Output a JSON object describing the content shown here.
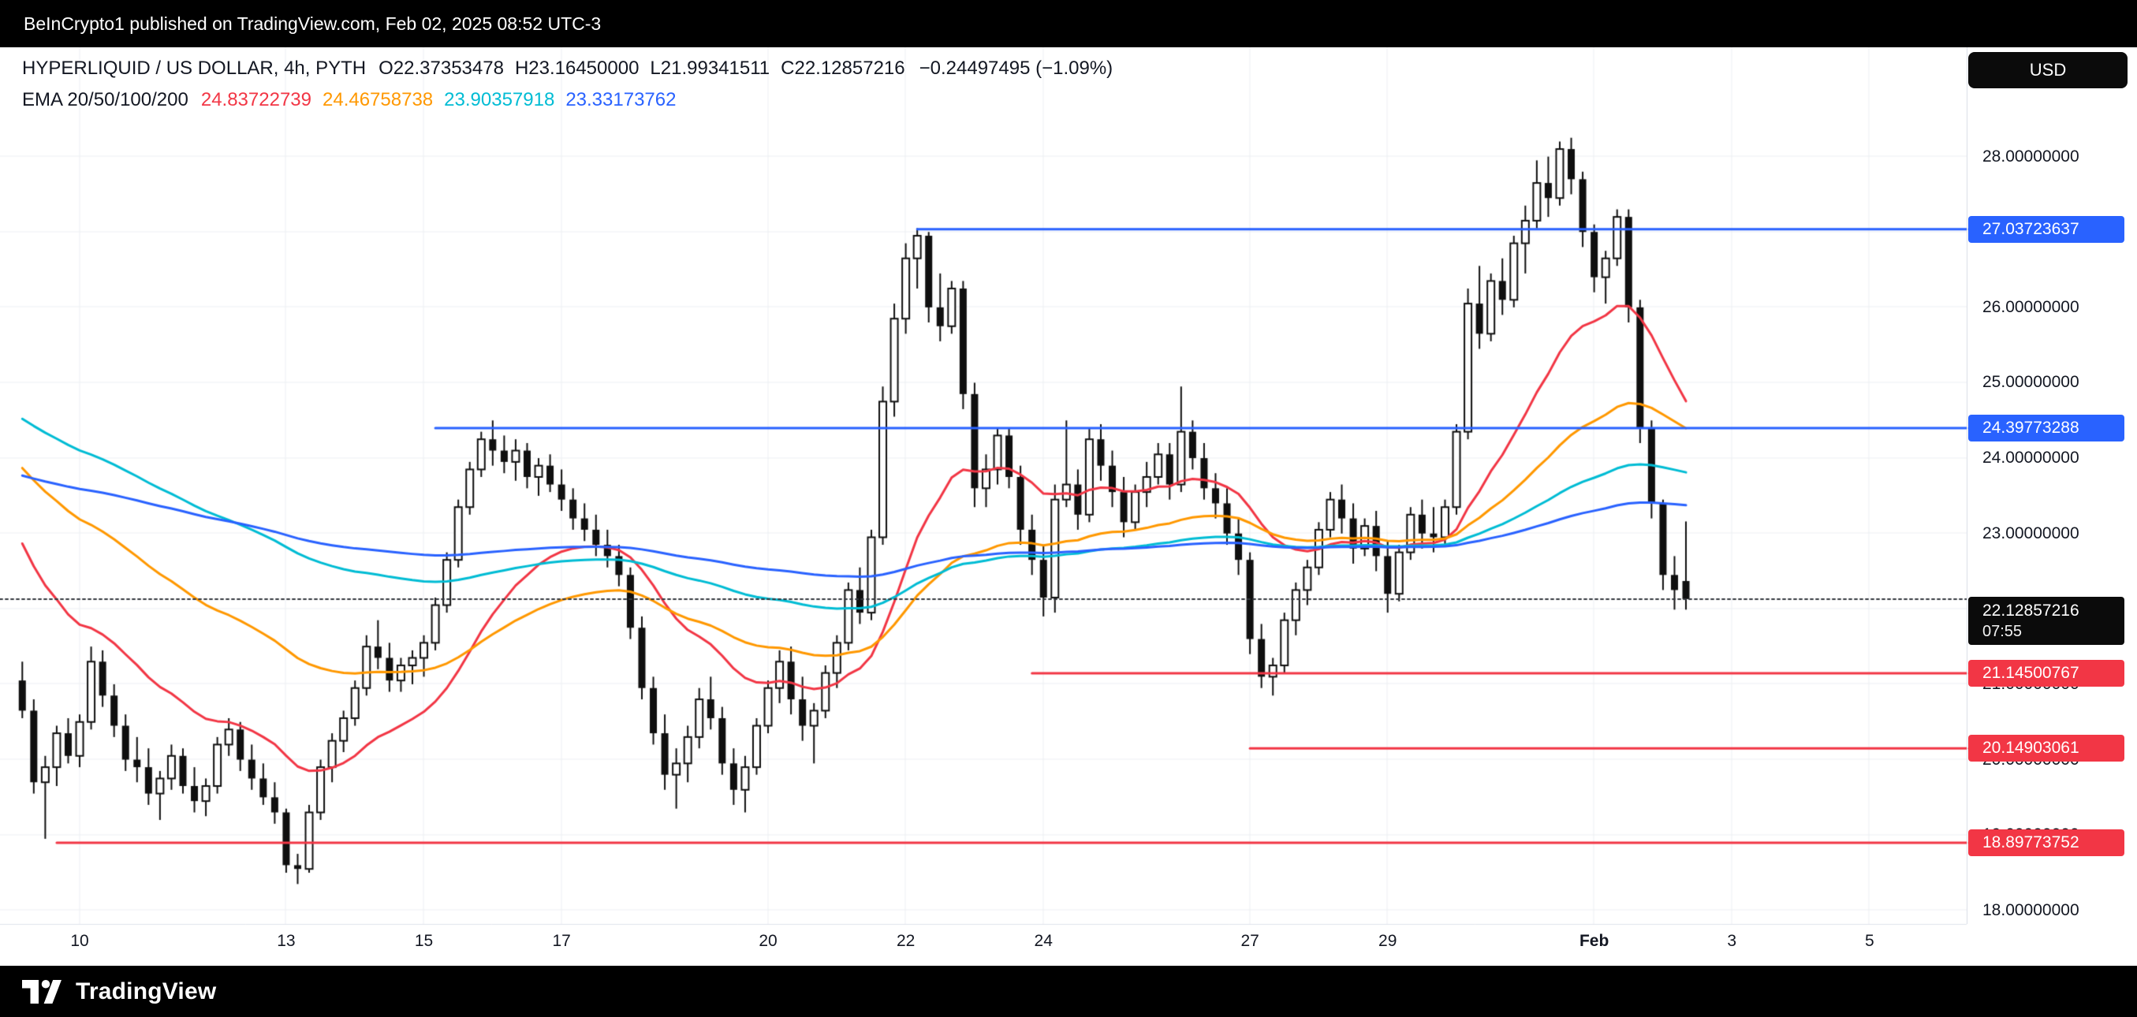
{
  "topbar": {
    "text": "BeInCrypto1 published on TradingView.com, Feb 02, 2025 08:52 UTC-3"
  },
  "header": {
    "symbol": "HYPERLIQUID / US DOLLAR, 4h, PYTH",
    "o": "O22.37353478",
    "h": "H23.16450000",
    "l": "L21.99341511",
    "c": "C22.12857216",
    "change": "−0.24497495 (−1.09%)",
    "ema_label": "EMA 20/50/100/200",
    "ema_values": [
      {
        "value": "24.83722739",
        "color": "#F23645"
      },
      {
        "value": "24.46758738",
        "color": "#FF9800"
      },
      {
        "value": "23.90357918",
        "color": "#00BCD4"
      },
      {
        "value": "23.33173762",
        "color": "#2962FF"
      }
    ]
  },
  "currency_button": "USD",
  "footer": {
    "brand": "TradingView"
  },
  "colors": {
    "grid": "#EDEFF3",
    "axis_text": "#131722",
    "bar_background": "#000000",
    "up_candle": "#FFFFFF",
    "down_candle": "#0F0F0F",
    "candle_border": "#0F0F0F",
    "accent_blue": "#2962FF",
    "accent_red": "#F23645",
    "last_price_badge": "#0B0B0B"
  },
  "price_axis": {
    "ticks": [
      {
        "label": "28.00000000",
        "price": 28
      },
      {
        "label": "27.00000000",
        "price": 27
      },
      {
        "label": "26.00000000",
        "price": 26
      },
      {
        "label": "25.00000000",
        "price": 25
      },
      {
        "label": "24.00000000",
        "price": 24
      },
      {
        "label": "23.00000000",
        "price": 23
      },
      {
        "label": "22.00000000",
        "price": 22
      },
      {
        "label": "21.00000000",
        "price": 21
      },
      {
        "label": "20.00000000",
        "price": 20
      },
      {
        "label": "19.00000000",
        "price": 19
      },
      {
        "label": "18.00000000",
        "price": 18
      }
    ]
  },
  "time_axis": {
    "ticks": [
      {
        "label": "10",
        "index": 5
      },
      {
        "label": "13",
        "index": 23
      },
      {
        "label": "15",
        "index": 35
      },
      {
        "label": "17",
        "index": 47
      },
      {
        "label": "20",
        "index": 65
      },
      {
        "label": "22",
        "index": 77
      },
      {
        "label": "24",
        "index": 89
      },
      {
        "label": "27",
        "index": 107
      },
      {
        "label": "29",
        "index": 119
      },
      {
        "label": "Feb",
        "index": 137,
        "strong": true
      },
      {
        "label": "3",
        "index": 149
      },
      {
        "label": "5",
        "index": 161
      }
    ]
  },
  "chart_data": {
    "type": "candlestick",
    "title": "HYPERLIQUID / US DOLLAR, 4h, PYTH",
    "timeframe": "4h",
    "ylim": [
      17.82,
      29.45
    ],
    "plot_slots": 170,
    "grid": {
      "h_lines": [
        18,
        19,
        20,
        21,
        22,
        23,
        24,
        25,
        26,
        27,
        28
      ]
    },
    "candles": [
      [
        21.05,
        21.3,
        20.55,
        20.65
      ],
      [
        20.65,
        20.8,
        19.55,
        19.7
      ],
      [
        19.7,
        20.05,
        18.95,
        19.9
      ],
      [
        19.9,
        20.45,
        19.65,
        20.35
      ],
      [
        20.35,
        20.55,
        19.95,
        20.05
      ],
      [
        20.05,
        20.6,
        19.9,
        20.5
      ],
      [
        20.5,
        21.5,
        20.4,
        21.3
      ],
      [
        21.3,
        21.45,
        20.7,
        20.85
      ],
      [
        20.85,
        21.0,
        20.3,
        20.45
      ],
      [
        20.45,
        20.6,
        19.85,
        20.0
      ],
      [
        20.0,
        20.3,
        19.7,
        19.9
      ],
      [
        19.9,
        20.15,
        19.4,
        19.55
      ],
      [
        19.55,
        19.85,
        19.2,
        19.75
      ],
      [
        19.75,
        20.2,
        19.6,
        20.05
      ],
      [
        20.05,
        20.15,
        19.55,
        19.65
      ],
      [
        19.65,
        19.9,
        19.3,
        19.45
      ],
      [
        19.45,
        19.75,
        19.25,
        19.65
      ],
      [
        19.65,
        20.3,
        19.55,
        20.2
      ],
      [
        20.2,
        20.55,
        20.05,
        20.4
      ],
      [
        20.4,
        20.5,
        19.85,
        20.0
      ],
      [
        20.0,
        20.2,
        19.6,
        19.75
      ],
      [
        19.75,
        19.95,
        19.4,
        19.5
      ],
      [
        19.5,
        19.7,
        19.15,
        19.3
      ],
      [
        19.3,
        19.35,
        18.5,
        18.6
      ],
      [
        18.6,
        18.75,
        18.35,
        18.55
      ],
      [
        18.55,
        19.4,
        18.5,
        19.3
      ],
      [
        19.3,
        20.0,
        19.2,
        19.9
      ],
      [
        19.9,
        20.35,
        19.7,
        20.25
      ],
      [
        20.25,
        20.65,
        20.1,
        20.55
      ],
      [
        20.55,
        21.05,
        20.45,
        20.95
      ],
      [
        20.95,
        21.65,
        20.85,
        21.5
      ],
      [
        21.5,
        21.85,
        21.2,
        21.35
      ],
      [
        21.35,
        21.55,
        20.9,
        21.05
      ],
      [
        21.05,
        21.35,
        20.9,
        21.25
      ],
      [
        21.25,
        21.45,
        21.0,
        21.35
      ],
      [
        21.35,
        21.65,
        21.1,
        21.55
      ],
      [
        21.55,
        22.15,
        21.45,
        22.05
      ],
      [
        22.05,
        22.75,
        21.95,
        22.65
      ],
      [
        22.65,
        23.45,
        22.55,
        23.35
      ],
      [
        23.35,
        23.95,
        23.25,
        23.85
      ],
      [
        23.85,
        24.35,
        23.75,
        24.25
      ],
      [
        24.25,
        24.5,
        23.9,
        24.1
      ],
      [
        24.1,
        24.3,
        23.8,
        23.95
      ],
      [
        23.95,
        24.25,
        23.7,
        24.1
      ],
      [
        24.1,
        24.2,
        23.6,
        23.75
      ],
      [
        23.75,
        24.0,
        23.5,
        23.9
      ],
      [
        23.9,
        24.05,
        23.55,
        23.65
      ],
      [
        23.65,
        23.85,
        23.3,
        23.45
      ],
      [
        23.45,
        23.6,
        23.05,
        23.2
      ],
      [
        23.2,
        23.4,
        22.9,
        23.05
      ],
      [
        23.05,
        23.25,
        22.7,
        22.85
      ],
      [
        22.85,
        23.05,
        22.55,
        22.7
      ],
      [
        22.7,
        22.85,
        22.3,
        22.45
      ],
      [
        22.45,
        22.55,
        21.6,
        21.75
      ],
      [
        21.75,
        21.9,
        20.8,
        20.95
      ],
      [
        20.95,
        21.1,
        20.2,
        20.35
      ],
      [
        20.35,
        20.6,
        19.6,
        19.8
      ],
      [
        19.8,
        20.15,
        19.35,
        19.95
      ],
      [
        19.95,
        20.45,
        19.7,
        20.3
      ],
      [
        20.3,
        20.95,
        20.15,
        20.8
      ],
      [
        20.8,
        21.1,
        20.4,
        20.55
      ],
      [
        20.55,
        20.7,
        19.8,
        19.95
      ],
      [
        19.95,
        20.15,
        19.4,
        19.6
      ],
      [
        19.6,
        20.05,
        19.3,
        19.9
      ],
      [
        19.9,
        20.55,
        19.8,
        20.45
      ],
      [
        20.45,
        21.05,
        20.35,
        20.95
      ],
      [
        20.95,
        21.45,
        20.75,
        21.3
      ],
      [
        21.3,
        21.5,
        20.6,
        20.8
      ],
      [
        20.8,
        21.1,
        20.25,
        20.45
      ],
      [
        20.45,
        20.75,
        19.95,
        20.65
      ],
      [
        20.65,
        21.25,
        20.55,
        21.15
      ],
      [
        21.15,
        21.65,
        20.95,
        21.55
      ],
      [
        21.55,
        22.35,
        21.45,
        22.25
      ],
      [
        22.25,
        22.55,
        21.8,
        21.95
      ],
      [
        21.95,
        23.05,
        21.85,
        22.95
      ],
      [
        22.95,
        24.95,
        22.85,
        24.75
      ],
      [
        24.75,
        26.05,
        24.55,
        25.85
      ],
      [
        25.85,
        26.85,
        25.65,
        26.65
      ],
      [
        26.65,
        27.05,
        26.25,
        26.95
      ],
      [
        26.95,
        27.0,
        25.8,
        26.0
      ],
      [
        26.0,
        26.45,
        25.55,
        25.75
      ],
      [
        25.75,
        26.35,
        25.65,
        26.25
      ],
      [
        26.25,
        26.35,
        24.65,
        24.85
      ],
      [
        24.85,
        25.0,
        23.35,
        23.6
      ],
      [
        23.6,
        24.05,
        23.35,
        23.85
      ],
      [
        23.85,
        24.4,
        23.65,
        24.3
      ],
      [
        24.3,
        24.4,
        23.6,
        23.75
      ],
      [
        23.75,
        23.9,
        22.85,
        23.05
      ],
      [
        23.05,
        23.25,
        22.45,
        22.65
      ],
      [
        22.65,
        22.85,
        21.9,
        22.15
      ],
      [
        22.15,
        23.65,
        21.95,
        23.45
      ],
      [
        23.45,
        24.5,
        23.35,
        23.65
      ],
      [
        23.65,
        23.85,
        23.05,
        23.25
      ],
      [
        23.25,
        24.4,
        23.15,
        24.25
      ],
      [
        24.25,
        24.45,
        23.7,
        23.9
      ],
      [
        23.9,
        24.1,
        23.35,
        23.55
      ],
      [
        23.55,
        23.75,
        22.95,
        23.15
      ],
      [
        23.15,
        23.65,
        23.05,
        23.55
      ],
      [
        23.55,
        23.95,
        23.35,
        23.75
      ],
      [
        23.75,
        24.2,
        23.65,
        24.05
      ],
      [
        24.05,
        24.2,
        23.45,
        23.65
      ],
      [
        23.65,
        24.95,
        23.55,
        24.35
      ],
      [
        24.35,
        24.5,
        23.85,
        24.0
      ],
      [
        24.0,
        24.2,
        23.45,
        23.6
      ],
      [
        23.6,
        23.8,
        23.2,
        23.4
      ],
      [
        23.4,
        23.6,
        22.85,
        23.0
      ],
      [
        23.0,
        23.2,
        22.45,
        22.65
      ],
      [
        22.65,
        22.75,
        21.4,
        21.6
      ],
      [
        21.6,
        21.8,
        20.95,
        21.1
      ],
      [
        21.1,
        21.35,
        20.85,
        21.25
      ],
      [
        21.25,
        21.95,
        21.15,
        21.85
      ],
      [
        21.85,
        22.35,
        21.65,
        22.25
      ],
      [
        22.25,
        22.65,
        22.05,
        22.55
      ],
      [
        22.55,
        23.15,
        22.45,
        23.05
      ],
      [
        23.05,
        23.55,
        22.95,
        23.45
      ],
      [
        23.45,
        23.65,
        23.0,
        23.2
      ],
      [
        23.2,
        23.4,
        22.6,
        22.8
      ],
      [
        22.8,
        23.2,
        22.7,
        23.1
      ],
      [
        23.1,
        23.3,
        22.5,
        22.7
      ],
      [
        22.7,
        22.9,
        21.95,
        22.2
      ],
      [
        22.2,
        22.85,
        22.1,
        22.75
      ],
      [
        22.75,
        23.35,
        22.65,
        23.25
      ],
      [
        23.25,
        23.45,
        22.8,
        23.0
      ],
      [
        23.0,
        23.35,
        22.75,
        22.95
      ],
      [
        22.95,
        23.45,
        22.85,
        23.35
      ],
      [
        23.35,
        24.45,
        23.25,
        24.35
      ],
      [
        24.35,
        26.25,
        24.25,
        26.05
      ],
      [
        26.05,
        26.55,
        25.45,
        25.65
      ],
      [
        25.65,
        26.45,
        25.55,
        26.35
      ],
      [
        26.35,
        26.65,
        25.9,
        26.1
      ],
      [
        26.1,
        26.95,
        26.0,
        26.85
      ],
      [
        26.85,
        27.35,
        26.45,
        27.15
      ],
      [
        27.15,
        27.95,
        27.05,
        27.65
      ],
      [
        27.65,
        28.0,
        27.2,
        27.45
      ],
      [
        27.45,
        28.2,
        27.35,
        28.1
      ],
      [
        28.1,
        28.25,
        27.5,
        27.7
      ],
      [
        27.7,
        27.8,
        26.8,
        27.0
      ],
      [
        27.0,
        27.1,
        26.2,
        26.4
      ],
      [
        26.4,
        26.75,
        26.05,
        26.65
      ],
      [
        26.65,
        27.3,
        26.55,
        27.2
      ],
      [
        27.2,
        27.3,
        25.8,
        26.0
      ],
      [
        26.0,
        26.1,
        24.2,
        24.4
      ],
      [
        24.4,
        24.5,
        23.2,
        23.4
      ],
      [
        23.4,
        23.45,
        22.25,
        22.45
      ],
      [
        22.45,
        22.7,
        21.99,
        22.25
      ],
      [
        22.37,
        23.16,
        21.99,
        22.13
      ]
    ],
    "emas": [
      {
        "name": "EMA 20",
        "period": 20,
        "color": "#F23645",
        "seed": 23.1
      },
      {
        "name": "EMA 50",
        "period": 50,
        "color": "#FF9800",
        "seed": 24.0
      },
      {
        "name": "EMA 100",
        "period": 100,
        "color": "#00BCD4",
        "seed": 24.6
      },
      {
        "name": "EMA 200",
        "period": 200,
        "color": "#2962FF",
        "seed": 23.8
      }
    ],
    "levels": [
      {
        "price": 27.03723637,
        "label": "27.03723637",
        "color": "#2962FF",
        "start_index": 78
      },
      {
        "price": 24.39773288,
        "label": "24.39773288",
        "color": "#2962FF",
        "start_index": 36
      },
      {
        "price": 21.14500767,
        "label": "21.14500767",
        "color": "#F23645",
        "start_index": 88
      },
      {
        "price": 20.14903061,
        "label": "20.14903061",
        "color": "#F23645",
        "start_index": 107
      },
      {
        "price": 18.89773752,
        "label": "18.89773752",
        "color": "#F23645",
        "start_index": 3
      }
    ],
    "last_price": {
      "value": 22.12857216,
      "label": "22.12857216",
      "countdown": "07:55"
    }
  }
}
